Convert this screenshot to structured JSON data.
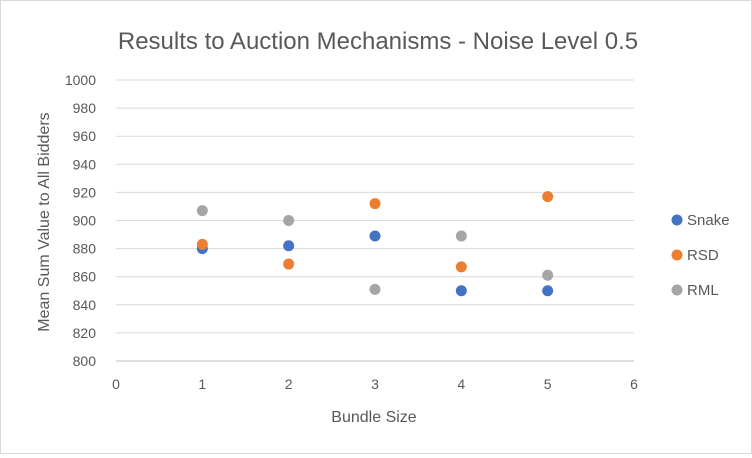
{
  "chart_data": {
    "type": "scatter",
    "title": "Results to Auction Mechanisms - Noise Level 0.5",
    "xlabel": "Bundle Size",
    "ylabel": "Mean Sum Value to All Bidders",
    "xlim": [
      0,
      6
    ],
    "ylim": [
      800,
      1000
    ],
    "xticks": [
      0,
      1,
      2,
      3,
      4,
      5,
      6
    ],
    "yticks": [
      800,
      820,
      840,
      860,
      880,
      900,
      920,
      940,
      960,
      980,
      1000
    ],
    "grid": "horizontal",
    "legend": "right",
    "series": [
      {
        "name": "Snake",
        "color": "#4472c4",
        "x": [
          1,
          2,
          3,
          4,
          5
        ],
        "y": [
          880,
          882,
          889,
          850,
          850
        ]
      },
      {
        "name": "RSD",
        "color": "#ed7d31",
        "x": [
          1,
          2,
          3,
          4,
          5
        ],
        "y": [
          883,
          869,
          912,
          867,
          917
        ]
      },
      {
        "name": "RML",
        "color": "#a5a5a5",
        "x": [
          1,
          2,
          3,
          4,
          5
        ],
        "y": [
          907,
          900,
          851,
          889,
          861
        ]
      }
    ]
  }
}
